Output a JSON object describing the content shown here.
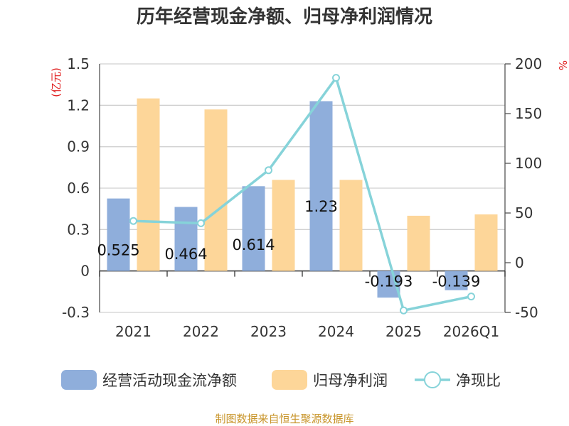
{
  "chart_data": {
    "type": "bar",
    "title": "历年经营现金净额、归母净利润情况",
    "categories": [
      "2021",
      "2022",
      "2023",
      "2024",
      "2025",
      "2026Q1"
    ],
    "series": [
      {
        "name": "经营活动现金流净额",
        "kind": "bar",
        "axis": "left",
        "color": "#8FAEDB",
        "values": [
          0.525,
          0.464,
          0.614,
          1.23,
          -0.193,
          -0.139
        ],
        "labels": [
          "0.525",
          "0.464",
          "0.614",
          "1.23",
          "-0.193",
          "-0.139"
        ]
      },
      {
        "name": "归母净利润",
        "kind": "bar",
        "axis": "left",
        "color": "#FDD699",
        "values": [
          1.25,
          1.17,
          0.66,
          0.66,
          0.4,
          0.41
        ]
      },
      {
        "name": "净现比",
        "kind": "line",
        "axis": "right",
        "color": "#86D3D9",
        "values": [
          42,
          39.7,
          93,
          186,
          -48,
          -34
        ]
      }
    ],
    "left_axis": {
      "unit": "(亿元)",
      "min": -0.3,
      "max": 1.5,
      "ticks": [
        "-0.3",
        "0",
        "0.3",
        "0.6",
        "0.9",
        "1.2",
        "1.5"
      ]
    },
    "right_axis": {
      "unit": "%",
      "min": -50,
      "max": 200,
      "ticks": [
        "-50",
        "0",
        "50",
        "100",
        "150",
        "200"
      ]
    },
    "unit_color": "#E02020",
    "grid": true,
    "legend_position": "bottom"
  },
  "source": {
    "text": "制图数据来自恒生聚源数据库",
    "color": "#C8952B"
  }
}
